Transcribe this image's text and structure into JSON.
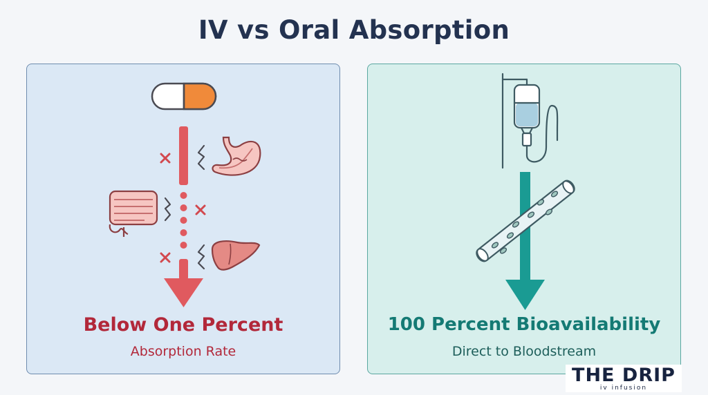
{
  "title": "IV vs Oral Absorption",
  "left_panel": {
    "headline": "Below One Percent",
    "subtitle": "Absorption Rate",
    "icons": [
      "capsule-icon",
      "stomach-icon",
      "intestine-icon",
      "liver-icon",
      "blocked-x-icon",
      "down-arrow-icon"
    ]
  },
  "right_panel": {
    "headline": "100 Percent Bioavailability",
    "subtitle": "Direct to Bloodstream",
    "icons": [
      "iv-drip-bag-icon",
      "blood-vessel-icon",
      "down-arrow-icon"
    ]
  },
  "logo": {
    "main": "THE DRIP",
    "sub": "iv infusion"
  },
  "colors": {
    "title": "#233250",
    "oral_accent": "#e05a5f",
    "oral_text": "#b2283a",
    "iv_accent": "#1a9b93",
    "iv_text": "#147a74"
  }
}
